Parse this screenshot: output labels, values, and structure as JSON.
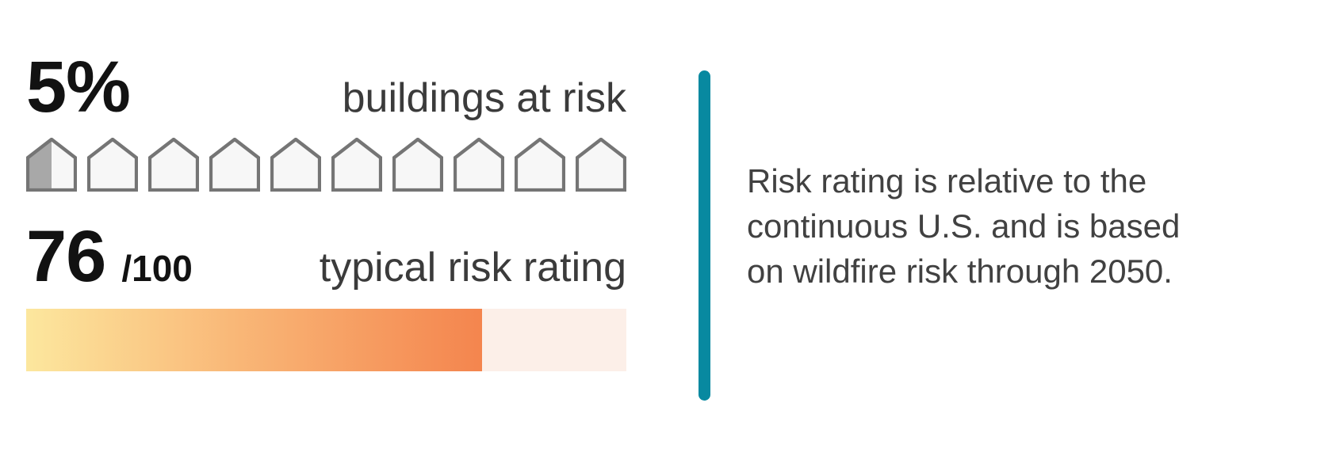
{
  "accent": {
    "divider_color": "#0889A0"
  },
  "buildings_stat": {
    "value": "5%",
    "label": "buildings at risk"
  },
  "houses": {
    "count": 10,
    "percent": 5,
    "outline_color": "#757575",
    "fill_color": "#f7f7f7",
    "filled_color": "#a8a8a8"
  },
  "rating_stat": {
    "value": "76",
    "denominator": "/100",
    "label": "typical risk rating"
  },
  "rating_bar": {
    "percent": 76,
    "gradient_start": "#fce79e",
    "gradient_mid": "#f9b878",
    "gradient_end": "#f4854e",
    "unfilled_color": "#fcefe8"
  },
  "note": {
    "text": "Risk rating is relative to the continuous U.S. and is based on wildfire risk through 2050.",
    "lines": [
      "Risk rating is relative to the",
      "continuous U.S. and is based",
      "on wildfire risk through 2050."
    ]
  },
  "chart_data": [
    {
      "type": "pictograph",
      "title": "buildings at risk",
      "value_pct": 5,
      "icon": "house",
      "icons_total": 10,
      "icons_filled": 0.5,
      "filled_color": "#a8a8a8",
      "empty_color": "#f7f7f7",
      "outline_color": "#757575"
    },
    {
      "type": "bar",
      "title": "typical risk rating",
      "value": 76,
      "max": 100,
      "orientation": "horizontal",
      "fill_gradient": [
        "#fce79e",
        "#f9b878",
        "#f4854e"
      ],
      "track_color": "#fcefe8"
    }
  ]
}
